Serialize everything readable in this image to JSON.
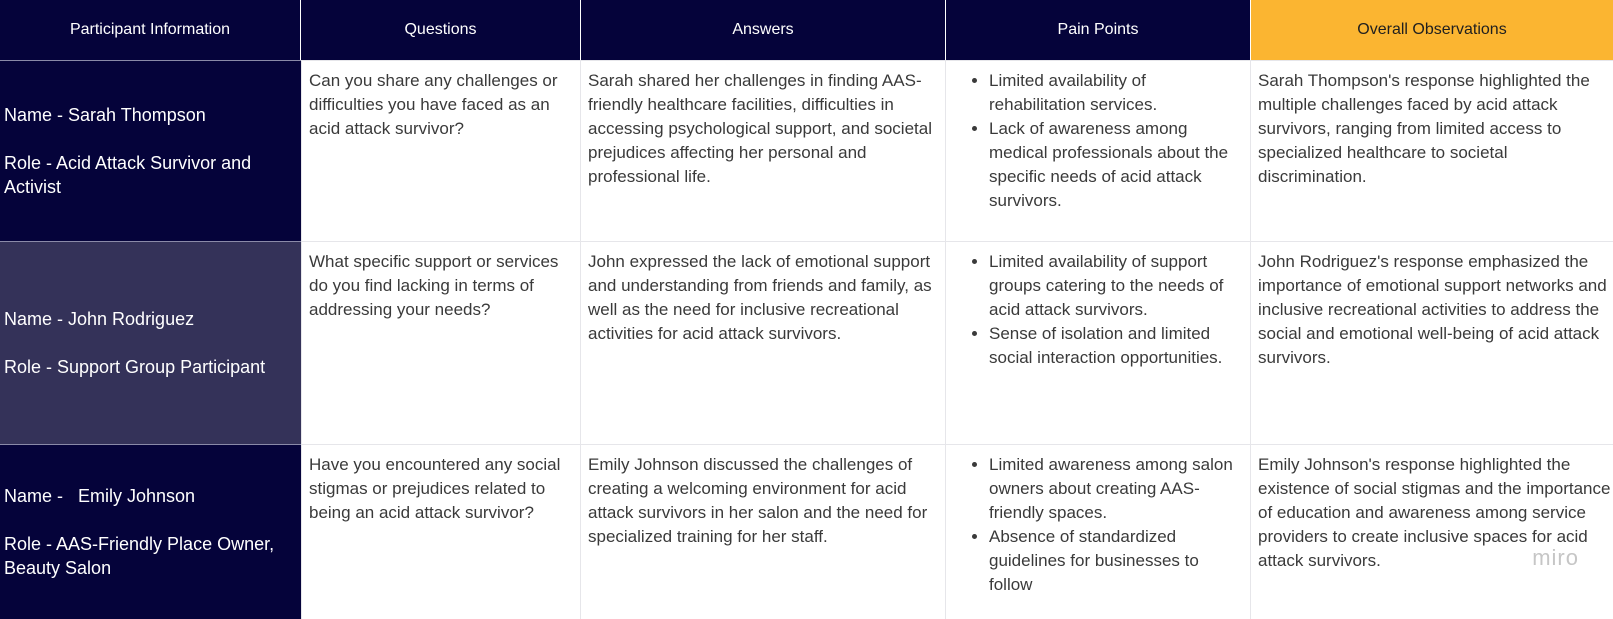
{
  "headers": {
    "participant": "Participant Information",
    "questions": "Questions",
    "answers": "Answers",
    "pain_points": "Pain Points",
    "observations": "Overall Observations"
  },
  "rows": [
    {
      "name": "Name - Sarah Thompson",
      "role": "Role - Acid Attack Survivor and Activist",
      "question": "Can you share any challenges or difficulties you have faced as an acid attack survivor?",
      "answer": "Sarah shared her challenges in finding AAS-friendly healthcare facilities, difficulties in accessing psychological support, and societal prejudices affecting her personal and professional life.",
      "pain_points": [
        "Limited availability of rehabilitation services.",
        "Lack of awareness among medical professionals about the specific needs of acid attack survivors."
      ],
      "observation": "Sarah Thompson's response highlighted the multiple challenges faced by acid attack survivors, ranging from limited access to specialized healthcare to societal discrimination."
    },
    {
      "name": "Name - John Rodriguez",
      "role": "Role - Support Group Participant",
      "question": "What specific support or services do you find lacking in terms of addressing your needs?",
      "answer": "John expressed the lack of emotional support and understanding from friends and family, as well as the need for inclusive recreational activities for acid attack survivors.",
      "pain_points": [
        "Limited availability of support groups catering to the needs of acid attack survivors.",
        "Sense of isolation and limited social interaction opportunities."
      ],
      "observation": "John Rodriguez's response emphasized the importance of emotional support networks and inclusive recreational activities to address the social and emotional well-being of acid attack survivors."
    },
    {
      "name": "Name -   Emily Johnson",
      "role": "Role - AAS-Friendly Place Owner, Beauty Salon",
      "question": "Have you encountered any social stigmas or prejudices related to being an acid attack survivor?",
      "answer": "Emily Johnson discussed the challenges of creating a welcoming environment for acid attack survivors in her salon and the need for specialized training for her staff.",
      "pain_points": [
        "Limited awareness among salon owners about creating AAS-friendly spaces.",
        "Absence of standardized guidelines for businesses to follow"
      ],
      "observation": "Emily Johnson's response highlighted the existence of social stigmas and the importance of education and awareness among service providers to create inclusive spaces for acid attack survivors."
    }
  ],
  "watermark": "miro",
  "colors": {
    "header_bg": "#05033a",
    "header_accent": "#fbb531",
    "row_dark": "#05033a",
    "row_mid": "#343259"
  }
}
